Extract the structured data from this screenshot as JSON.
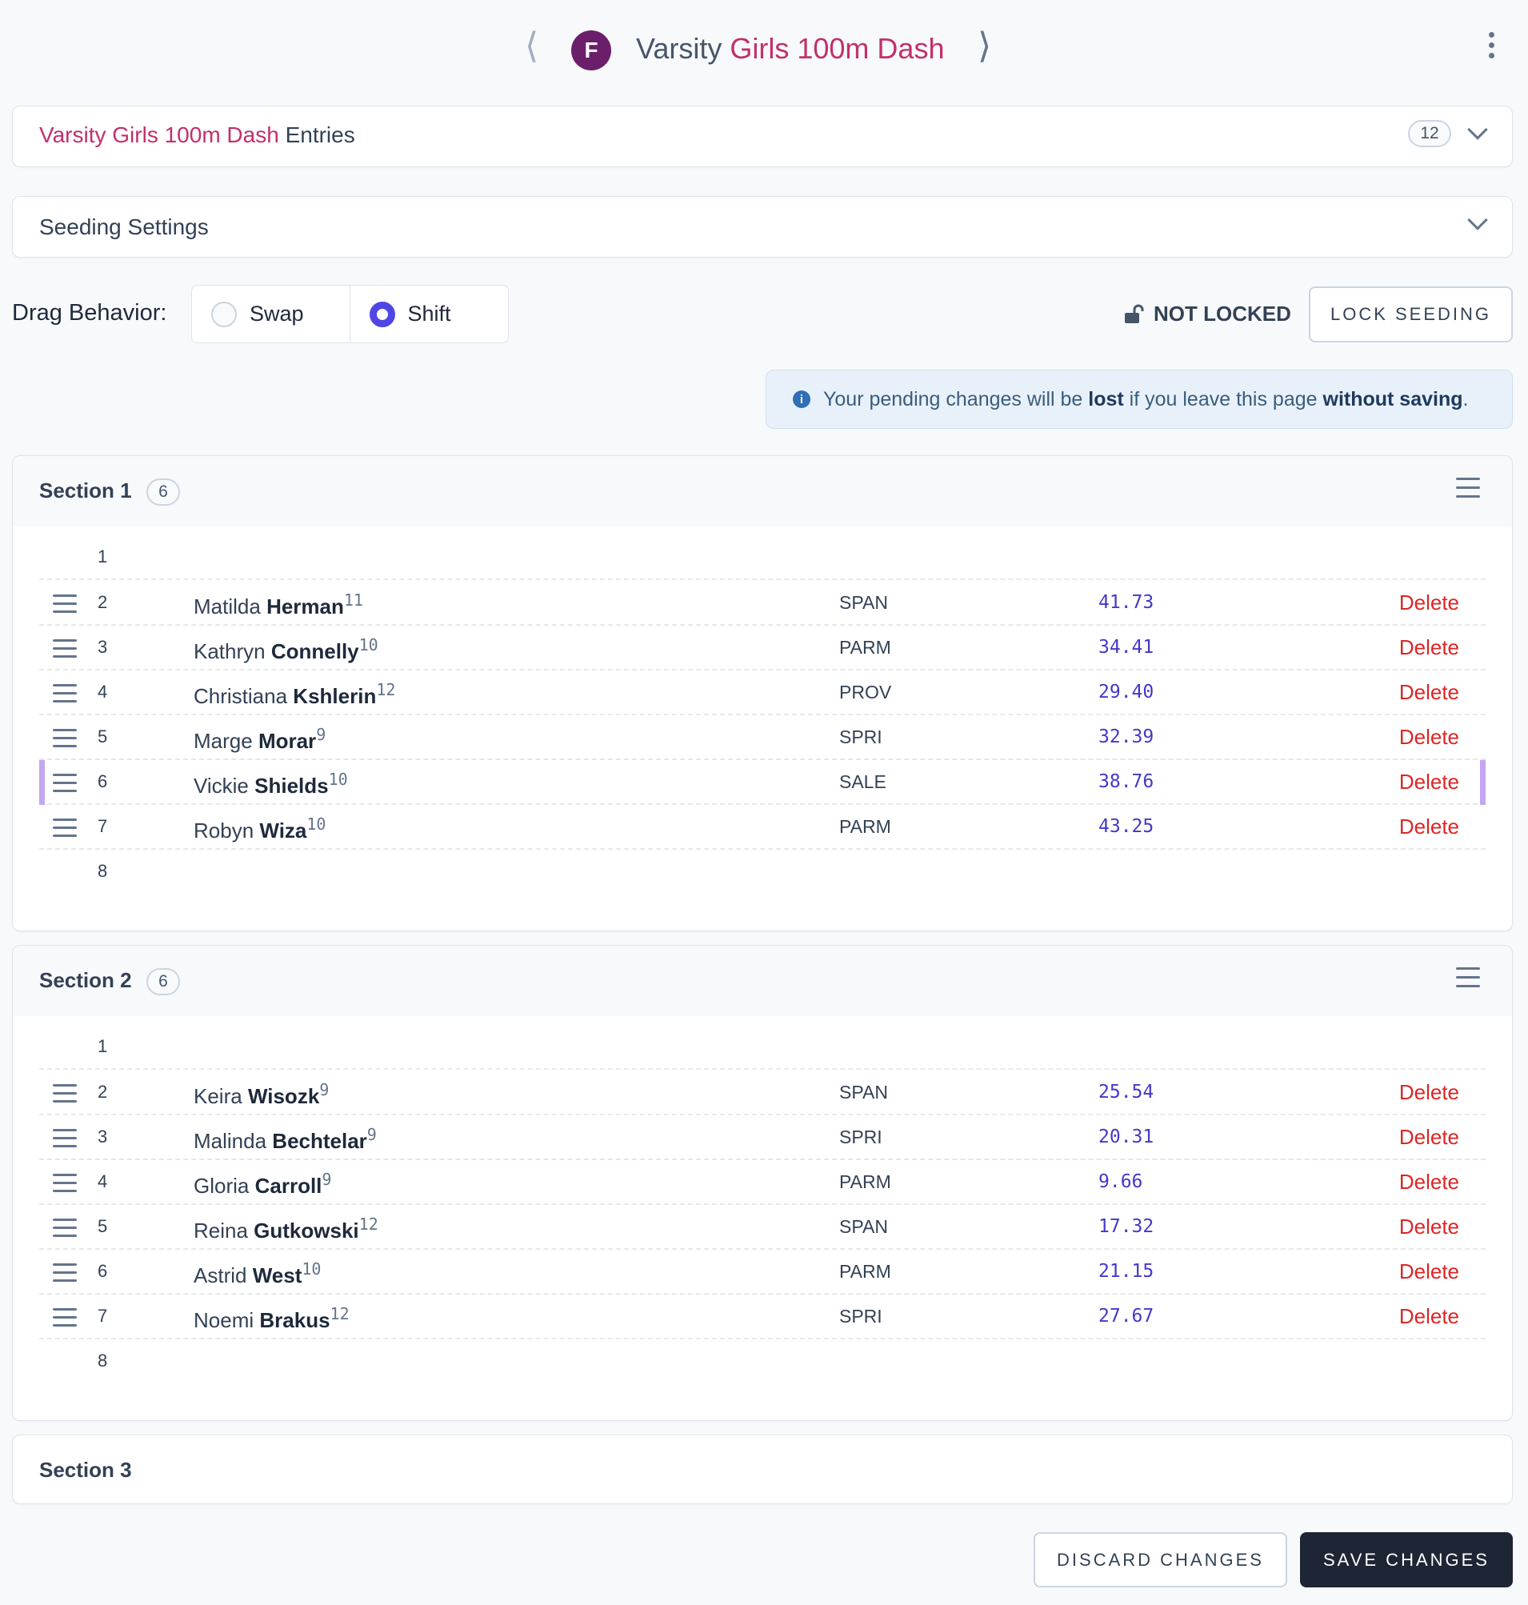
{
  "header": {
    "badge": "F",
    "title_level": "Varsity",
    "title_event": "Girls 100m Dash"
  },
  "entries_card": {
    "event": "Varsity Girls 100m Dash",
    "suffix": "Entries",
    "count": "12"
  },
  "seeding_card": {
    "title": "Seeding Settings"
  },
  "drag": {
    "label": "Drag Behavior:",
    "options": [
      "Swap",
      "Shift"
    ],
    "selected": "Shift"
  },
  "lock": {
    "status": "NOT LOCKED",
    "button": "LOCK SEEDING"
  },
  "notice": {
    "part1": "Your pending changes will be ",
    "bold1": "lost",
    "part2": " if you leave this page ",
    "bold2": "without saving",
    "part3": "."
  },
  "sections": [
    {
      "title": "Section 1",
      "count": "6",
      "rows": [
        {
          "lane": "1"
        },
        {
          "lane": "2",
          "first": "Matilda",
          "last": "Herman",
          "grade": "11",
          "team": "SPAN",
          "mark": "41.73",
          "action": "Delete"
        },
        {
          "lane": "3",
          "first": "Kathryn",
          "last": "Connelly",
          "grade": "10",
          "team": "PARM",
          "mark": "34.41",
          "action": "Delete"
        },
        {
          "lane": "4",
          "first": "Christiana",
          "last": "Kshlerin",
          "grade": "12",
          "team": "PROV",
          "mark": "29.40",
          "action": "Delete"
        },
        {
          "lane": "5",
          "first": "Marge",
          "last": "Morar",
          "grade": "9",
          "team": "SPRI",
          "mark": "32.39",
          "action": "Delete"
        },
        {
          "lane": "6",
          "first": "Vickie",
          "last": "Shields",
          "grade": "10",
          "team": "SALE",
          "mark": "38.76",
          "action": "Delete"
        },
        {
          "lane": "7",
          "first": "Robyn",
          "last": "Wiza",
          "grade": "10",
          "team": "PARM",
          "mark": "43.25",
          "action": "Delete"
        },
        {
          "lane": "8"
        }
      ]
    },
    {
      "title": "Section 2",
      "count": "6",
      "rows": [
        {
          "lane": "1"
        },
        {
          "lane": "2",
          "first": "Keira",
          "last": "Wisozk",
          "grade": "9",
          "team": "SPAN",
          "mark": "25.54",
          "action": "Delete"
        },
        {
          "lane": "3",
          "first": "Malinda",
          "last": "Bechtelar",
          "grade": "9",
          "team": "SPRI",
          "mark": "20.31",
          "action": "Delete"
        },
        {
          "lane": "4",
          "first": "Gloria",
          "last": "Carroll",
          "grade": "9",
          "team": "PARM",
          "mark": "9.66",
          "action": "Delete"
        },
        {
          "lane": "5",
          "first": "Reina",
          "last": "Gutkowski",
          "grade": "12",
          "team": "SPAN",
          "mark": "17.32",
          "action": "Delete"
        },
        {
          "lane": "6",
          "first": "Astrid",
          "last": "West",
          "grade": "10",
          "team": "PARM",
          "mark": "21.15",
          "action": "Delete"
        },
        {
          "lane": "7",
          "first": "Noemi",
          "last": "Brakus",
          "grade": "12",
          "team": "SPRI",
          "mark": "27.67",
          "action": "Delete"
        },
        {
          "lane": "8"
        }
      ]
    }
  ],
  "section3": {
    "title": "Section 3"
  },
  "footer": {
    "discard": "DISCARD CHANGES",
    "save": "SAVE CHANGES"
  },
  "colors": {
    "accent": "#c2306b",
    "badge": "#6b1f6b",
    "radio": "#4f46e5",
    "delete": "#dc2626",
    "mark": "#4338ca",
    "dark_button": "#1e2535"
  },
  "icons": [
    "chevron-left-icon",
    "chevron-right-icon",
    "kebab-menu-icon",
    "chevron-down-icon",
    "unlock-icon",
    "info-icon",
    "hamburger-menu-icon",
    "drag-handle-icon"
  ]
}
